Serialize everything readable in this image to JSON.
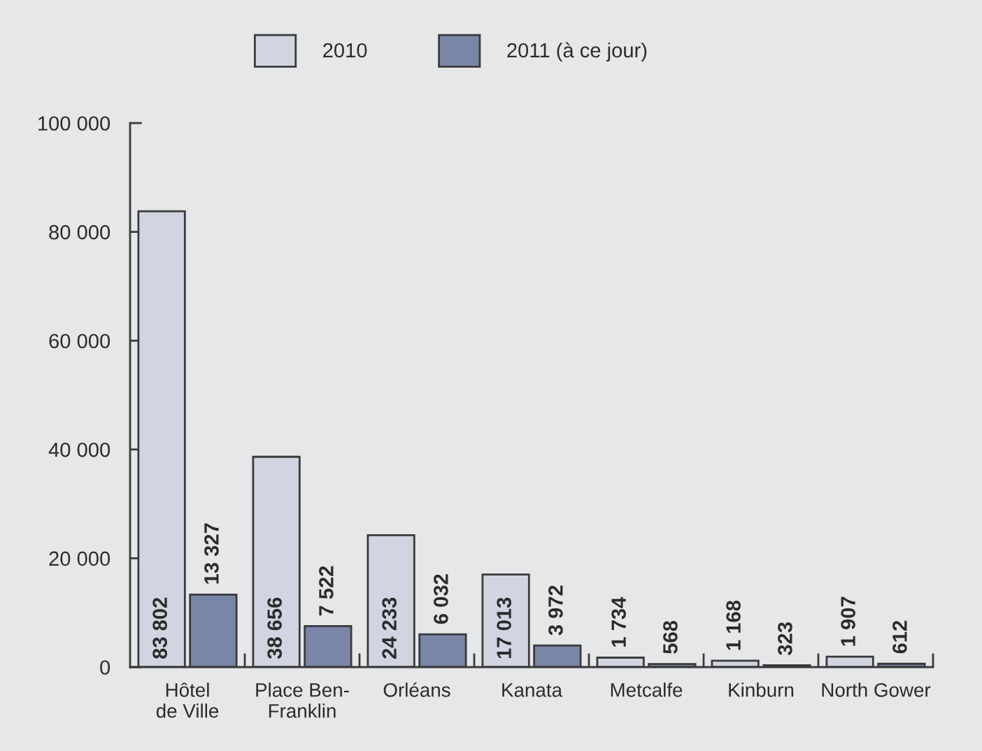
{
  "chart_data": {
    "type": "bar",
    "categories": [
      "Hôtel\nde Ville",
      "Place Ben-\nFranklin",
      "Orléans",
      "Kanata",
      "Metcalfe",
      "Kinburn",
      "North Gower"
    ],
    "series": [
      {
        "name": "2010",
        "color": "#d0d5e1",
        "values": [
          83802,
          38656,
          24233,
          17013,
          1734,
          1168,
          1907
        ],
        "value_labels": [
          "83 802",
          "38 656",
          "24 233",
          "17 013",
          "1 734",
          "1 168",
          "1 907"
        ]
      },
      {
        "name": "2011 (à ce jour)",
        "color": "#7986a8",
        "values": [
          13327,
          7522,
          6032,
          3972,
          568,
          323,
          612
        ],
        "value_labels": [
          "13 327",
          "7 522",
          "6 032",
          "3 972",
          "568",
          "323",
          "612"
        ]
      }
    ],
    "ylim": [
      0,
      100000
    ],
    "yticks": [
      0,
      {
        "value": 20000,
        "label": "20 000"
      },
      {
        "value": 40000,
        "label": "40 000"
      },
      {
        "value": 60000,
        "label": "60 000"
      },
      {
        "value": 80000,
        "label": "80 000"
      },
      {
        "value": 100000,
        "label": "100 000"
      }
    ],
    "grid": false,
    "legend": "top"
  }
}
